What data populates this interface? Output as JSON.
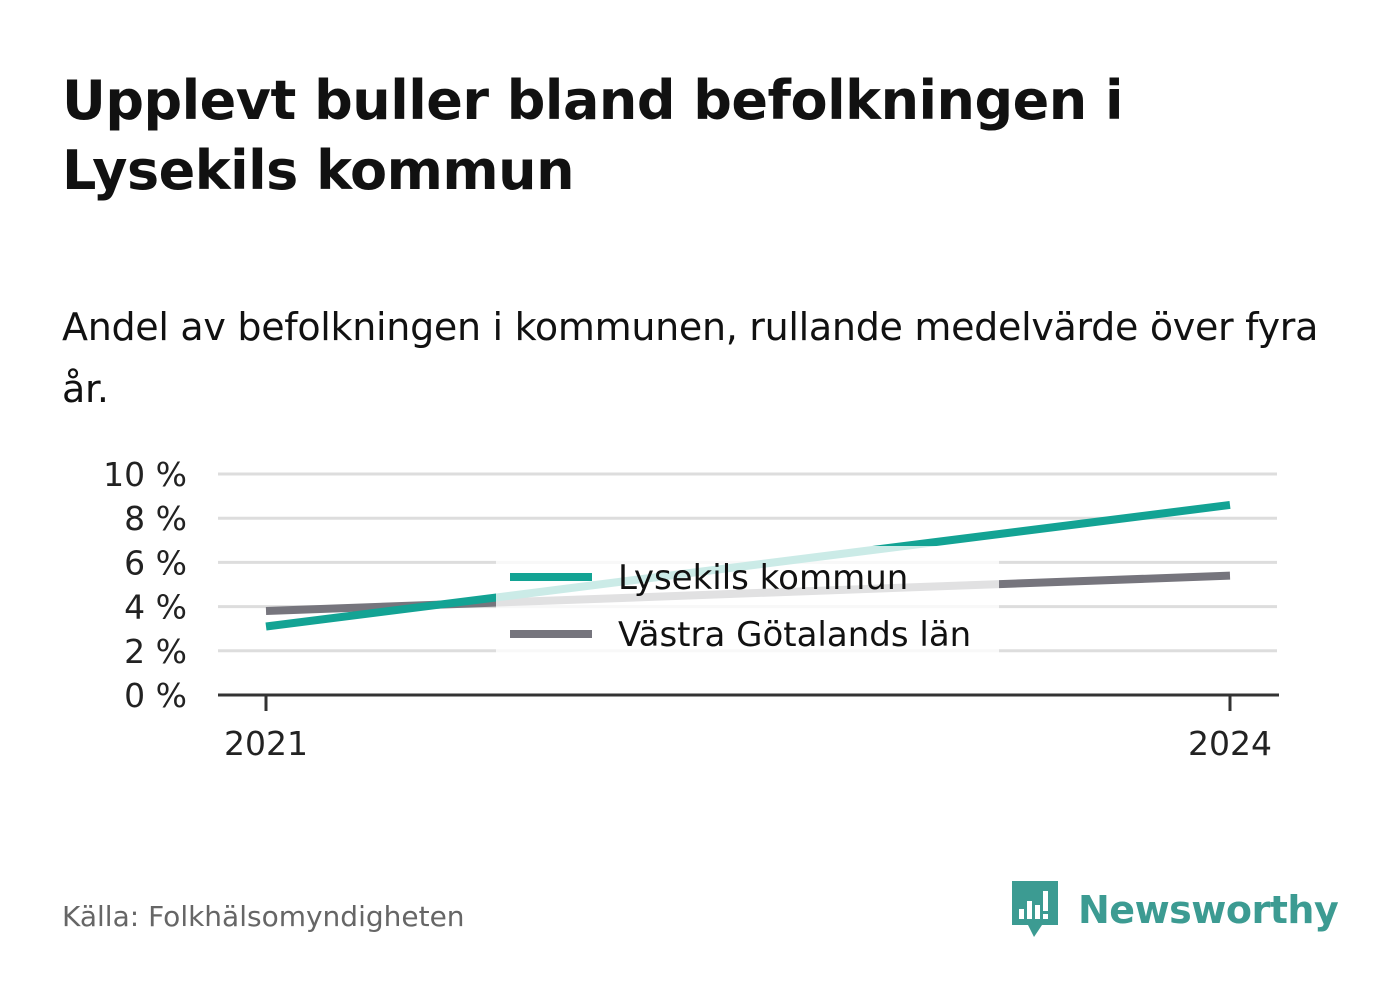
{
  "title": "Upplevt buller bland befolkningen i Lysekils kommun",
  "subtitle": "Andel av befolkningen i kommunen, rullande medelvärde över fyra år.",
  "source": "Källa: Folkhälsomyndigheten",
  "brand": {
    "name": "Newsworthy",
    "icon": "newsworthy-logo-icon",
    "color": "#3c9b92"
  },
  "chart_data": {
    "type": "line",
    "x": [
      "2021",
      "2024"
    ],
    "x_tick_labels": [
      "2021",
      "2024"
    ],
    "y_ticks": [
      0,
      2,
      4,
      6,
      8,
      10
    ],
    "y_tick_labels": [
      "0 %",
      "2 %",
      "4 %",
      "6 %",
      "8 %",
      "10 %"
    ],
    "ylim": [
      0,
      10
    ],
    "grid": true,
    "legend": "center",
    "series": [
      {
        "name": "Lysekils kommun",
        "values": [
          3.1,
          8.6
        ],
        "color": "#13a394"
      },
      {
        "name": "Västra Götalands län",
        "values": [
          3.8,
          5.4
        ],
        "color": "#76757d"
      }
    ]
  }
}
